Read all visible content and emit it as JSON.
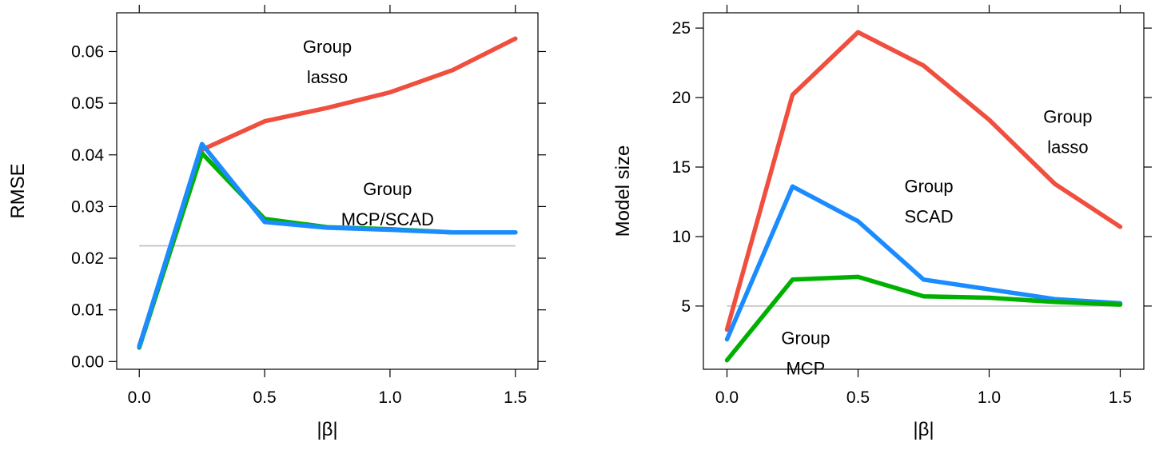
{
  "chart_data": [
    {
      "type": "line",
      "xlabel": "|β|",
      "ylabel": "RMSE",
      "xlim": [
        -0.09,
        1.59
      ],
      "ylim": [
        -0.0015,
        0.0675
      ],
      "x_ticks": [
        0.0,
        0.5,
        1.0,
        1.5
      ],
      "x_tick_labels": [
        "0.0",
        "0.5",
        "1.0",
        "1.5"
      ],
      "y_ticks": [
        0.0,
        0.01,
        0.02,
        0.03,
        0.04,
        0.05,
        0.06
      ],
      "y_tick_labels": [
        "0.00",
        "0.01",
        "0.02",
        "0.03",
        "0.04",
        "0.05",
        "0.06"
      ],
      "grid": false,
      "reference_line": {
        "y": 0.0224,
        "color": "#bebebe"
      },
      "series": [
        {
          "color": "#f04e3e",
          "x": [
            0,
            0.25,
            0.5,
            0.75,
            1.0,
            1.25,
            1.5
          ],
          "y": [
            0.003,
            0.041,
            0.0465,
            0.0491,
            0.0521,
            0.0564,
            0.0625
          ]
        },
        {
          "color": "#00b000",
          "x": [
            0,
            0.25,
            0.5,
            0.75,
            1.0,
            1.25,
            1.5
          ],
          "y": [
            0.0027,
            0.0403,
            0.0276,
            0.026,
            0.0256,
            0.025,
            0.025
          ]
        },
        {
          "color": "#1a8cff",
          "x": [
            0,
            0.25,
            0.5,
            0.75,
            1.0,
            1.25,
            1.5
          ],
          "y": [
            0.0029,
            0.0421,
            0.027,
            0.0259,
            0.0255,
            0.025,
            0.025
          ]
        }
      ],
      "annotations": [
        {
          "lines": [
            "Group",
            "lasso"
          ],
          "x": 0.75,
          "y": 0.0598
        },
        {
          "lines": [
            "Group",
            "MCP/SCAD"
          ],
          "x": 0.99,
          "y": 0.0322
        }
      ]
    },
    {
      "type": "line",
      "xlabel": "|β|",
      "ylabel": "Model size",
      "xlim": [
        -0.09,
        1.59
      ],
      "ylim": [
        0.45,
        26.1
      ],
      "x_ticks": [
        0.0,
        0.5,
        1.0,
        1.5
      ],
      "x_tick_labels": [
        "0.0",
        "0.5",
        "1.0",
        "1.5"
      ],
      "y_ticks": [
        5,
        10,
        15,
        20,
        25
      ],
      "y_tick_labels": [
        "5",
        "10",
        "15",
        "20",
        "25"
      ],
      "grid": false,
      "reference_line": {
        "y": 5.0,
        "color": "#bebebe"
      },
      "series": [
        {
          "color": "#f04e3e",
          "x": [
            0,
            0.25,
            0.5,
            0.75,
            1.0,
            1.25,
            1.5
          ],
          "y": [
            3.3,
            20.2,
            24.7,
            22.3,
            18.4,
            13.8,
            10.7
          ]
        },
        {
          "color": "#1a8cff",
          "x": [
            0,
            0.25,
            0.5,
            0.75,
            1.0,
            1.25,
            1.5
          ],
          "y": [
            2.6,
            13.6,
            11.1,
            6.9,
            6.2,
            5.5,
            5.2
          ]
        },
        {
          "color": "#00b000",
          "x": [
            0,
            0.25,
            0.5,
            0.75,
            1.0,
            1.25,
            1.5
          ],
          "y": [
            1.1,
            6.9,
            7.1,
            5.7,
            5.6,
            5.3,
            5.1
          ]
        }
      ],
      "annotations": [
        {
          "lines": [
            "Group",
            "lasso"
          ],
          "x": 1.3,
          "y": 18.2
        },
        {
          "lines": [
            "Group",
            "SCAD"
          ],
          "x": 0.77,
          "y": 13.2
        },
        {
          "lines": [
            "Group",
            "MCP"
          ],
          "x": 0.3,
          "y": 2.25
        }
      ]
    }
  ]
}
